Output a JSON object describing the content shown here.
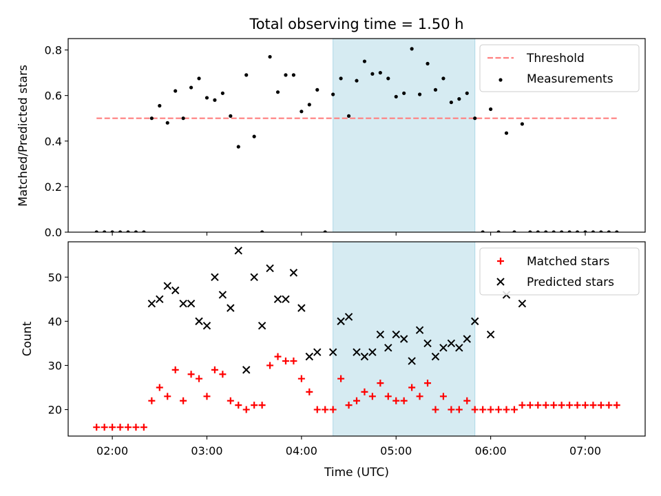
{
  "chart_data": [
    {
      "type": "scatter",
      "title": "Total observing time = 1.50 h",
      "ylabel": "Matched/Predicted stars",
      "xlabel": "",
      "x_unit": "UTC time",
      "xlim": [
        "01:32",
        "07:38"
      ],
      "ylim": [
        0,
        0.85
      ],
      "xticks": [
        "02:00",
        "03:00",
        "04:00",
        "05:00",
        "06:00",
        "07:00"
      ],
      "yticks": [
        "0.0",
        "0.2",
        "0.4",
        "0.6",
        "0.8"
      ],
      "highlight_span": [
        "04:20",
        "05:50"
      ],
      "highlight_color": "#add8e6",
      "legend_position": "upper right",
      "series": [
        {
          "name": "Threshold",
          "kind": "dashed-line",
          "color": "#ff7f7f",
          "x": [
            "01:50",
            "07:20"
          ],
          "y": [
            0.5,
            0.5
          ]
        },
        {
          "name": "Measurements",
          "kind": "points",
          "color": "#000000",
          "x": [
            "01:50",
            "01:55",
            "02:00",
            "02:05",
            "02:10",
            "02:15",
            "02:20",
            "02:25",
            "02:30",
            "02:35",
            "02:40",
            "02:45",
            "02:50",
            "02:55",
            "03:00",
            "03:05",
            "03:10",
            "03:15",
            "03:20",
            "03:25",
            "03:30",
            "03:35",
            "03:40",
            "03:45",
            "03:50",
            "03:55",
            "04:00",
            "04:05",
            "04:10",
            "04:15",
            "04:20",
            "04:25",
            "04:30",
            "04:35",
            "04:40",
            "04:45",
            "04:50",
            "04:55",
            "05:00",
            "05:05",
            "05:10",
            "05:15",
            "05:20",
            "05:25",
            "05:30",
            "05:35",
            "05:40",
            "05:45",
            "05:50",
            "05:55",
            "06:00",
            "06:05",
            "06:10",
            "06:15",
            "06:20",
            "06:25",
            "06:30",
            "06:35",
            "06:40",
            "06:45",
            "06:50",
            "06:55",
            "07:00",
            "07:05",
            "07:10",
            "07:15",
            "07:20"
          ],
          "y": [
            0,
            0,
            0,
            0,
            0,
            0,
            0,
            0.5,
            0.555,
            0.48,
            0.62,
            0.5,
            0.635,
            0.675,
            0.59,
            0.58,
            0.61,
            0.51,
            0.375,
            0.69,
            0.42,
            0,
            0.77,
            0.615,
            0.69,
            0.69,
            0.53,
            0.56,
            0.625,
            0,
            0.605,
            0.675,
            0.51,
            0.665,
            0.75,
            0.695,
            0.7,
            0.675,
            0.595,
            0.61,
            0.805,
            0.605,
            0.74,
            0.625,
            0.675,
            0.57,
            0.585,
            0.61,
            0.5,
            0,
            0.54,
            0,
            0.435,
            0,
            0.475,
            0,
            0,
            0,
            0,
            0,
            0,
            0,
            0,
            0,
            0,
            0,
            0
          ]
        }
      ]
    },
    {
      "type": "scatter",
      "title": "",
      "ylabel": "Count",
      "xlabel": "Time (UTC)",
      "xlim": [
        "01:32",
        "07:38"
      ],
      "ylim": [
        14,
        58
      ],
      "xticks": [
        "02:00",
        "03:00",
        "04:00",
        "05:00",
        "06:00",
        "07:00"
      ],
      "yticks": [
        "20",
        "30",
        "40",
        "50"
      ],
      "highlight_span": [
        "04:20",
        "05:50"
      ],
      "highlight_color": "#add8e6",
      "legend_position": "upper right",
      "series": [
        {
          "name": "Matched stars",
          "kind": "plus",
          "color": "#ff0000",
          "x": [
            "01:50",
            "01:55",
            "02:00",
            "02:05",
            "02:10",
            "02:15",
            "02:20",
            "02:25",
            "02:30",
            "02:35",
            "02:40",
            "02:45",
            "02:50",
            "02:55",
            "03:00",
            "03:05",
            "03:10",
            "03:15",
            "03:20",
            "03:25",
            "03:30",
            "03:35",
            "03:40",
            "03:45",
            "03:50",
            "03:55",
            "04:00",
            "04:05",
            "04:10",
            "04:15",
            "04:20",
            "04:25",
            "04:30",
            "04:35",
            "04:40",
            "04:45",
            "04:50",
            "04:55",
            "05:00",
            "05:05",
            "05:10",
            "05:15",
            "05:20",
            "05:25",
            "05:30",
            "05:35",
            "05:40",
            "05:45",
            "05:50",
            "05:55",
            "06:00",
            "06:05",
            "06:10",
            "06:15",
            "06:20",
            "06:25",
            "06:30",
            "06:35",
            "06:40",
            "06:45",
            "06:50",
            "06:55",
            "07:00",
            "07:05",
            "07:10",
            "07:15",
            "07:20"
          ],
          "y": [
            16,
            16,
            16,
            16,
            16,
            16,
            16,
            22,
            25,
            23,
            29,
            22,
            28,
            27,
            23,
            29,
            28,
            22,
            21,
            20,
            21,
            21,
            30,
            32,
            31,
            31,
            27,
            24,
            20,
            20,
            20,
            27,
            21,
            22,
            24,
            23,
            26,
            23,
            22,
            22,
            25,
            23,
            26,
            20,
            23,
            20,
            20,
            22,
            20,
            20,
            20,
            20,
            20,
            20,
            21,
            21,
            21,
            21,
            21,
            21,
            21,
            21,
            21,
            21,
            21,
            21,
            21
          ]
        },
        {
          "name": "Predicted stars",
          "kind": "cross",
          "color": "#000000",
          "x": [
            "02:25",
            "02:30",
            "02:35",
            "02:40",
            "02:45",
            "02:50",
            "02:55",
            "03:00",
            "03:05",
            "03:10",
            "03:15",
            "03:20",
            "03:25",
            "03:30",
            "03:35",
            "03:40",
            "03:45",
            "03:50",
            "03:55",
            "04:00",
            "04:05",
            "04:10",
            "04:20",
            "04:25",
            "04:30",
            "04:35",
            "04:40",
            "04:45",
            "04:50",
            "04:55",
            "05:00",
            "05:05",
            "05:10",
            "05:15",
            "05:20",
            "05:25",
            "05:30",
            "05:35",
            "05:40",
            "05:45",
            "05:50",
            "06:00",
            "06:10",
            "06:20"
          ],
          "y": [
            44,
            45,
            48,
            47,
            44,
            44,
            40,
            39,
            50,
            46,
            43,
            56,
            29,
            50,
            39,
            52,
            45,
            45,
            51,
            43,
            32,
            33,
            33,
            40,
            41,
            33,
            32,
            33,
            37,
            34,
            37,
            36,
            31,
            38,
            35,
            32,
            34,
            35,
            34,
            36,
            40,
            37,
            46,
            44
          ]
        }
      ]
    }
  ]
}
